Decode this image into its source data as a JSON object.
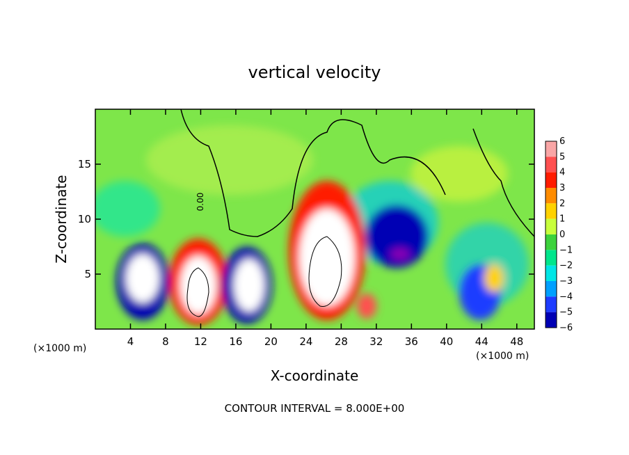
{
  "chart_data": {
    "type": "heatmap",
    "title": "vertical velocity",
    "xlabel": "X-coordinate",
    "ylabel": "Z-coordinate",
    "x_unit_left": "(×1000 m)",
    "x_unit_right": "(×1000 m)",
    "footer": "CONTOUR INTERVAL = 8.000E+00",
    "contour_label": "0.00",
    "xlim": [
      0,
      50
    ],
    "ylim": [
      0,
      20
    ],
    "x_ticks": [
      4,
      8,
      12,
      16,
      20,
      24,
      28,
      32,
      36,
      40,
      44,
      48
    ],
    "y_ticks": [
      5,
      10,
      15
    ],
    "colorbar": {
      "levels": [
        6,
        5,
        4,
        3,
        2,
        1,
        0,
        -1,
        -2,
        -3,
        -4,
        -5,
        -6
      ],
      "colors": [
        "#f9a6a6",
        "#ff5050",
        "#ff1c00",
        "#ff8c00",
        "#ffd200",
        "#c8ff3c",
        "#3cd23c",
        "#00e68c",
        "#00e6e6",
        "#00a0ff",
        "#1e3cff",
        "#0000b4",
        "#8c00b4"
      ]
    },
    "features": [
      {
        "kind": "updraft",
        "x": 5.0,
        "z": 4.5,
        "strength": 10
      },
      {
        "kind": "updraft",
        "x": 11.5,
        "z": 3.5,
        "strength": 12
      },
      {
        "kind": "updraft",
        "x": 17.5,
        "z": 4.0,
        "strength": 10
      },
      {
        "kind": "updraft",
        "x": 26.0,
        "z": 6.0,
        "strength": 14
      },
      {
        "kind": "downdraft",
        "x": 35.0,
        "z": 7.0,
        "strength": -7
      },
      {
        "kind": "downdraft",
        "x": 44.0,
        "z": 4.0,
        "strength": -4
      }
    ]
  }
}
